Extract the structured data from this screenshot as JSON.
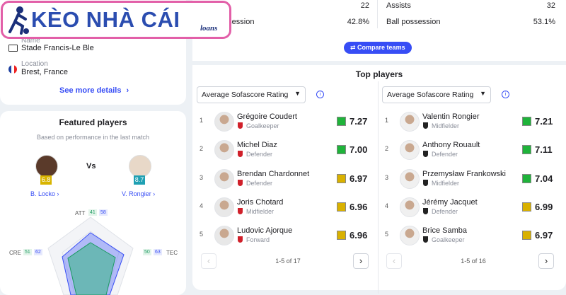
{
  "logo": {
    "title": "KÈO NHÀ CÁI",
    "subtitle": "loans"
  },
  "venue": {
    "name_label": "Name",
    "name": "Stade Francis-Le Ble",
    "location_label": "Location",
    "location": "Brest, France",
    "link": "See more details"
  },
  "featured": {
    "title": "Featured players",
    "subtitle": "Based on performance in the last match",
    "vs": "Vs",
    "players": [
      {
        "name": "B. Locko",
        "rating": "6.8"
      },
      {
        "name": "V. Rongier",
        "rating": "8.7"
      }
    ],
    "attributes": [
      {
        "label": "ATT",
        "values": [
          41,
          58
        ]
      },
      {
        "label": "CRE",
        "values": [
          51,
          62
        ]
      },
      {
        "label": "TEC",
        "values": [
          50,
          63
        ]
      }
    ]
  },
  "stats": {
    "left": [
      {
        "value": "22"
      },
      {
        "label": "Ball possession",
        "value": "42.8%"
      }
    ],
    "right": [
      {
        "label": "Assists",
        "value": "32"
      },
      {
        "label": "Ball possession",
        "value": "53.1%"
      }
    ]
  },
  "compare_button": "Compare teams",
  "top_players": {
    "title": "Top players",
    "lists": [
      {
        "sort": "Average Sofascore Rating",
        "pagination": "1-5 of 17",
        "players": [
          {
            "rank": 1,
            "name": "Grégoire Coudert",
            "position": "Goalkeeper",
            "rating": "7.27"
          },
          {
            "rank": 2,
            "name": "Michel Diaz",
            "position": "Defender",
            "rating": "7.00"
          },
          {
            "rank": 3,
            "name": "Brendan Chardonnet",
            "position": "Defender",
            "rating": "6.97"
          },
          {
            "rank": 4,
            "name": "Joris Chotard",
            "position": "Midfielder",
            "rating": "6.96"
          },
          {
            "rank": 5,
            "name": "Ludovic Ajorque",
            "position": "Forward",
            "rating": "6.96"
          }
        ]
      },
      {
        "sort": "Average Sofascore Rating",
        "pagination": "1-5 of 16",
        "players": [
          {
            "rank": 1,
            "name": "Valentin Rongier",
            "position": "Midfielder",
            "rating": "7.21"
          },
          {
            "rank": 2,
            "name": "Anthony Rouault",
            "position": "Defender",
            "rating": "7.11"
          },
          {
            "rank": 3,
            "name": "Przemysław Frankowski",
            "position": "Midfielder",
            "rating": "7.04"
          },
          {
            "rank": 4,
            "name": "Jérémy Jacquet",
            "position": "Defender",
            "rating": "6.99"
          },
          {
            "rank": 5,
            "name": "Brice Samba",
            "position": "Goalkeeper",
            "rating": "6.97"
          }
        ]
      }
    ]
  }
}
